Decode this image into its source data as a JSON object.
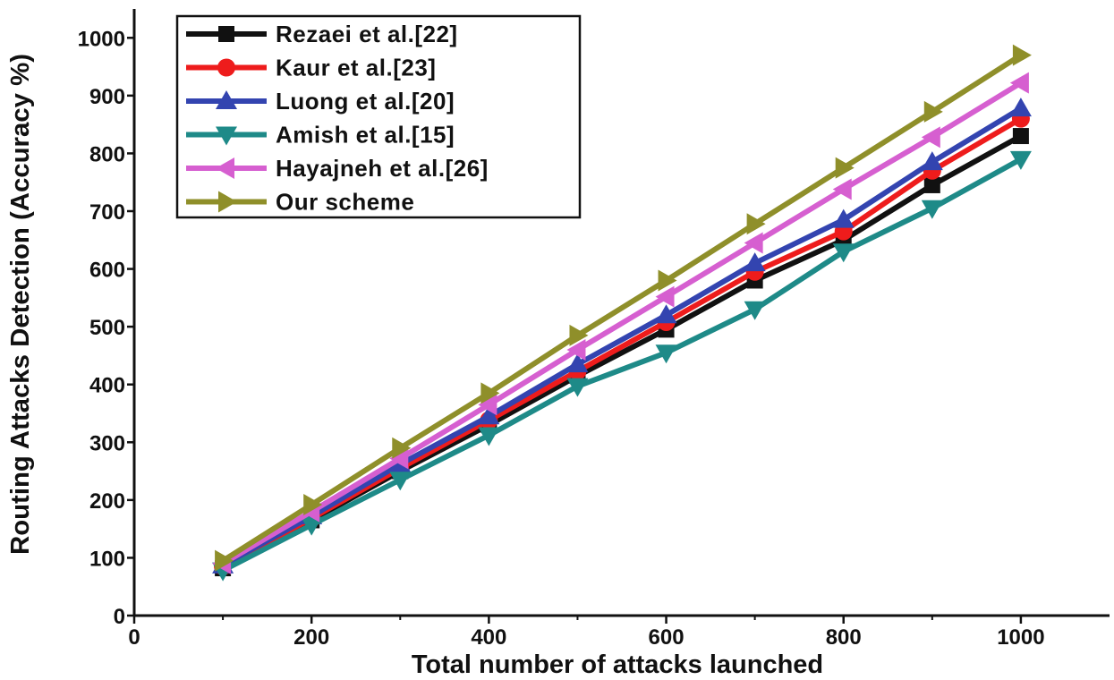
{
  "chart_data": {
    "type": "line",
    "title": "",
    "xlabel": "Total number of attacks launched",
    "ylabel": "Routing Attacks Detection (Accuracy %)",
    "xlim": [
      0,
      1100
    ],
    "ylim": [
      0,
      1050
    ],
    "xticks": [
      0,
      200,
      400,
      600,
      800,
      1000
    ],
    "yticks": [
      0,
      100,
      200,
      300,
      400,
      500,
      600,
      700,
      800,
      900,
      1000
    ],
    "x": [
      100,
      200,
      300,
      400,
      500,
      600,
      700,
      800,
      900,
      1000
    ],
    "grid": false,
    "legend_position": "top-left",
    "series": [
      {
        "name": "Rezaei et al.[22]",
        "color": "#111111",
        "marker": "square",
        "values": [
          82,
          165,
          250,
          330,
          415,
          495,
          580,
          650,
          745,
          830
        ]
      },
      {
        "name": "Kaur et al.[23]",
        "color": "#ee1c1c",
        "marker": "circle",
        "values": [
          85,
          168,
          255,
          338,
          423,
          508,
          595,
          665,
          770,
          860
        ]
      },
      {
        "name": "Luong et al.[20]",
        "color": "#3344b0",
        "marker": "triangle-up",
        "values": [
          87,
          172,
          262,
          345,
          435,
          520,
          610,
          685,
          785,
          878
        ]
      },
      {
        "name": "Amish et al.[15]",
        "color": "#1e8a88",
        "marker": "triangle-down",
        "values": [
          78,
          157,
          235,
          312,
          397,
          455,
          530,
          630,
          705,
          790
        ]
      },
      {
        "name": "Hayajneh et al.[26]",
        "color": "#d65fd0",
        "marker": "triangle-left",
        "values": [
          90,
          180,
          272,
          365,
          460,
          552,
          645,
          738,
          828,
          922
        ]
      },
      {
        "name": "Our scheme",
        "color": "#8f8f2a",
        "marker": "triangle-right",
        "values": [
          95,
          192,
          290,
          385,
          485,
          580,
          678,
          775,
          872,
          970
        ]
      }
    ]
  }
}
